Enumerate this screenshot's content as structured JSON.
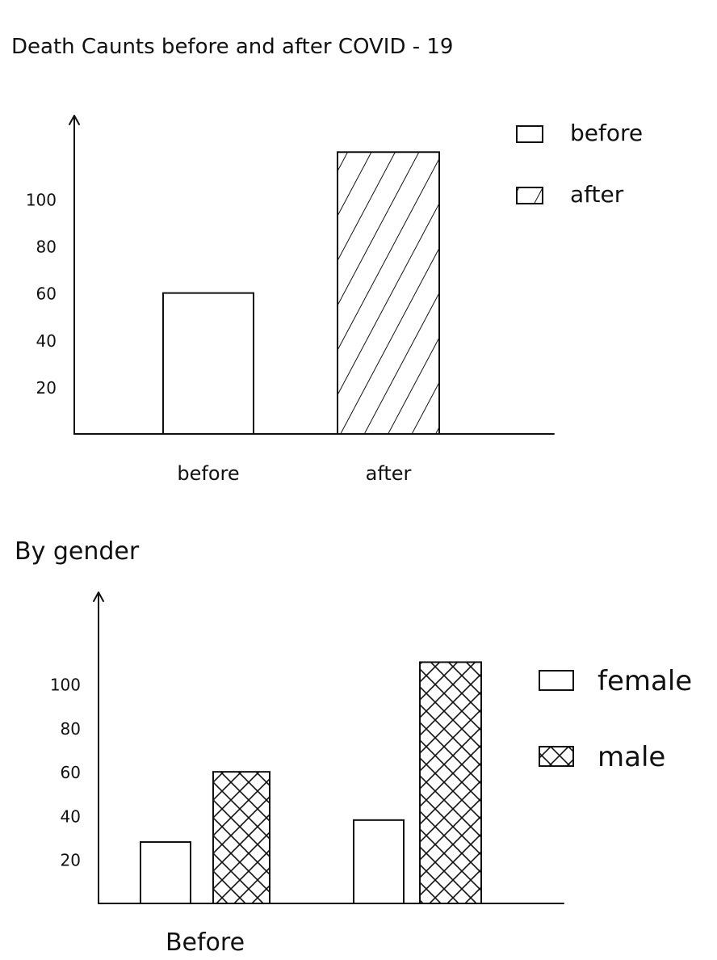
{
  "chart_data": [
    {
      "type": "bar",
      "title": "Death Caunts before and after COVID - 19",
      "categories": [
        "before",
        "after"
      ],
      "values": [
        60,
        120
      ],
      "patterns": [
        "none",
        "hatch"
      ],
      "yticks": [
        20,
        40,
        60,
        80,
        100
      ],
      "ylim": [
        0,
        128
      ],
      "grid": false,
      "legend": {
        "placement": "top-right",
        "entries": [
          {
            "label": "before",
            "pattern": "none"
          },
          {
            "label": "after",
            "pattern": "hatch"
          }
        ]
      }
    },
    {
      "type": "bar",
      "title": "By gender",
      "categories": [
        "Before",
        ""
      ],
      "series": [
        {
          "name": "female",
          "pattern": "none",
          "values": [
            28,
            38
          ]
        },
        {
          "name": "male",
          "pattern": "crosshatch",
          "values": [
            60,
            110
          ]
        }
      ],
      "yticks": [
        20,
        40,
        60,
        80,
        100
      ],
      "ylim": [
        0,
        140
      ],
      "grid": false,
      "legend": {
        "placement": "right",
        "entries": [
          {
            "label": "female",
            "pattern": "none"
          },
          {
            "label": "male",
            "pattern": "crosshatch"
          }
        ]
      }
    }
  ]
}
